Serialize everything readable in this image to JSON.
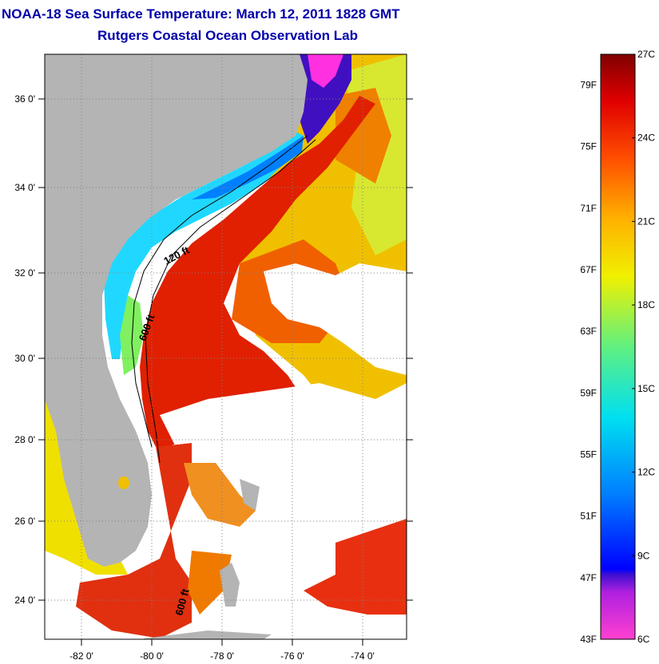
{
  "title": "NOAA-18 Sea Surface Temperature:  March 12, 2011 1828 GMT",
  "subtitle": "Rutgers Coastal Ocean Observation Lab",
  "map": {
    "lat_ticks": [
      "36 0'",
      "34 0'",
      "32 0'",
      "30 0'",
      "28 0'",
      "26 0'",
      "24 0'"
    ],
    "lon_ticks": [
      "-82 0'",
      "-80 0'",
      "-78 0'",
      "-76 0'",
      "-74 0'"
    ],
    "contour_labels": [
      "120 ft",
      "600 ft",
      "600 ft"
    ],
    "colors": {
      "land": "#b4b4b4",
      "cloud": "#ffffff",
      "warm": "#e01a00",
      "orange": "#f07a00",
      "yellow": "#f0e800",
      "cyan": "#20d8ff",
      "blue": "#0040ff",
      "violet": "#8000d0"
    }
  },
  "colorbar": {
    "fahrenheit": [
      "79F",
      "75F",
      "71F",
      "67F",
      "63F",
      "59F",
      "55F",
      "51F",
      "47F",
      "43F"
    ],
    "celsius": [
      "27C",
      "24C",
      "21C",
      "18C",
      "15C",
      "12C",
      "9C",
      "6C"
    ],
    "f_range": [
      43,
      81
    ],
    "c_range": [
      6,
      27
    ]
  }
}
